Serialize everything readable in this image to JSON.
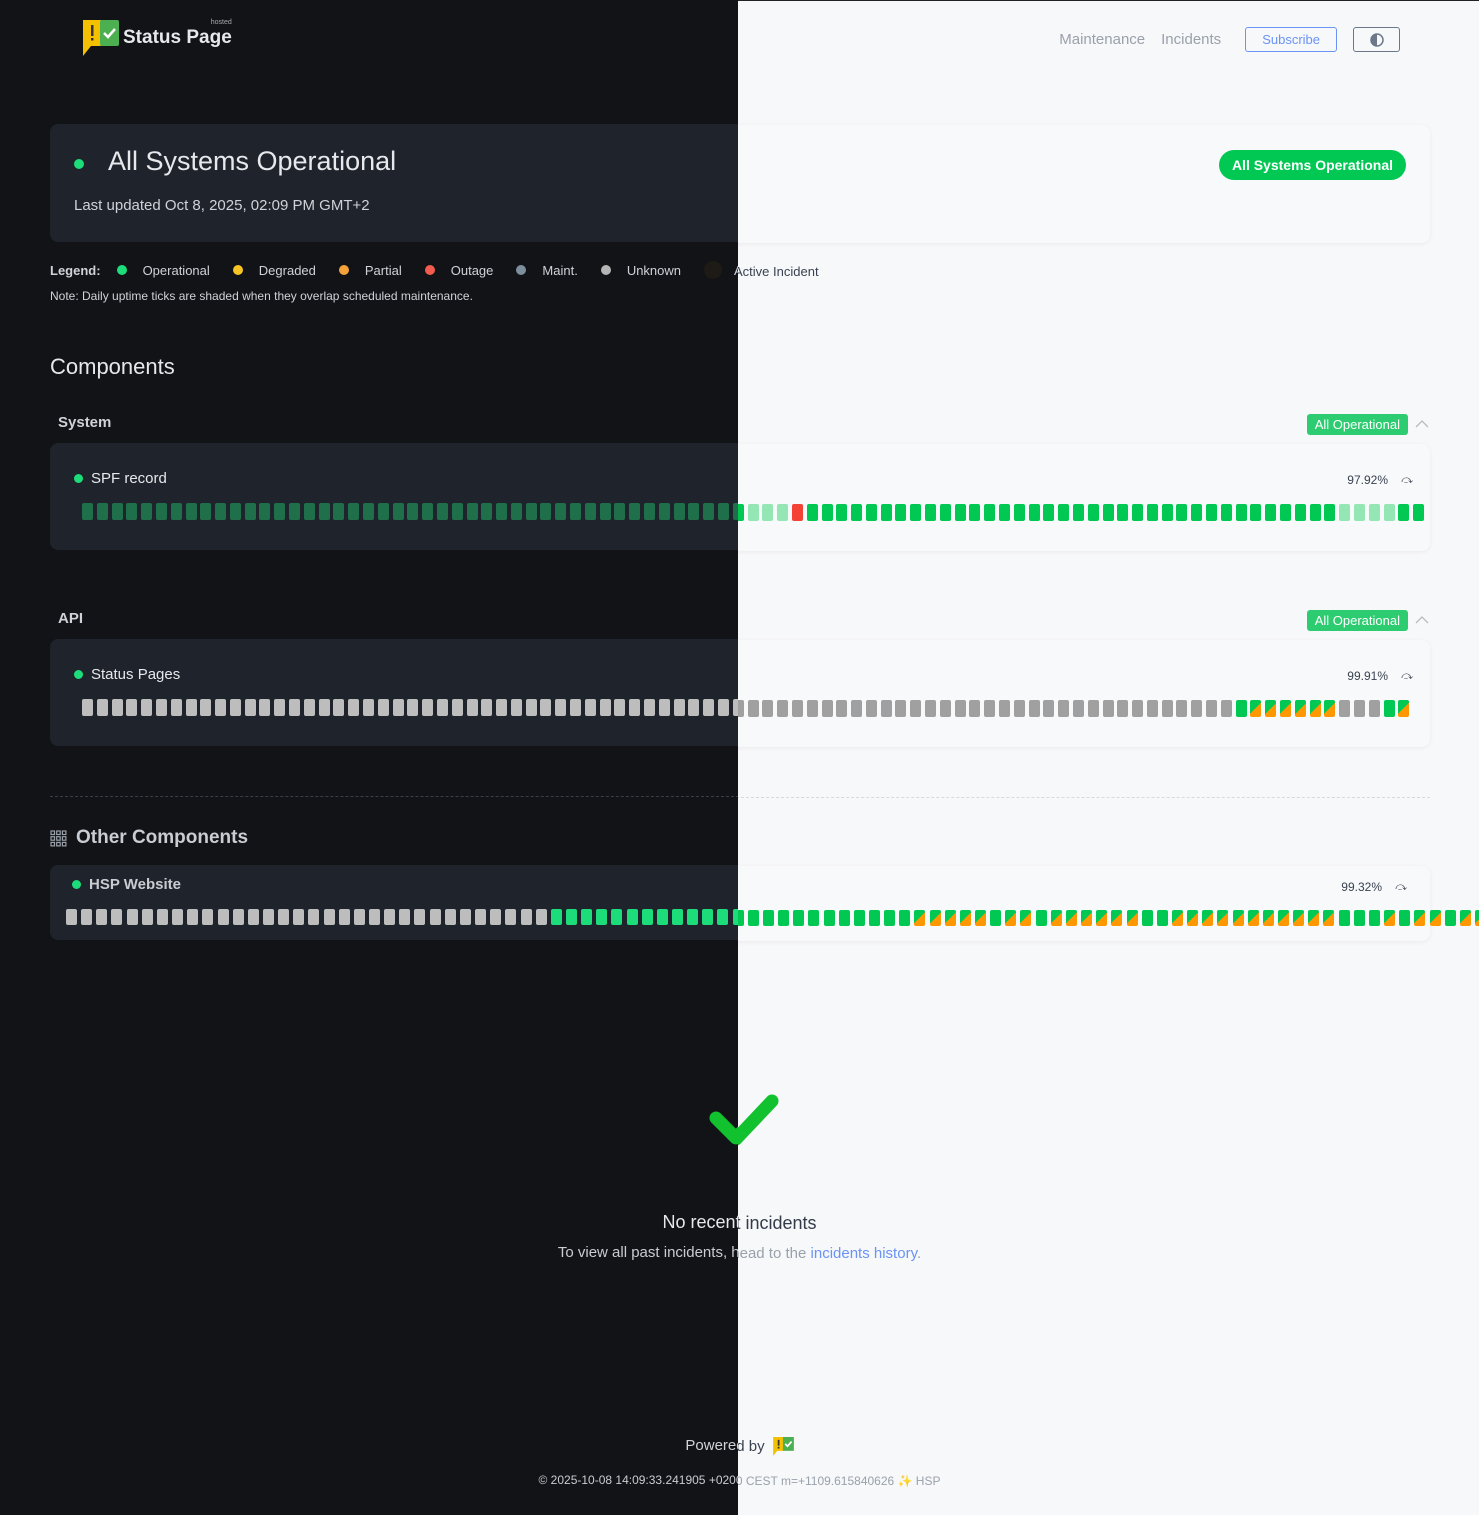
{
  "header": {
    "logo_text": "Status Page",
    "logo_superscript": "hosted",
    "nav": [
      "Maintenance",
      "Incidents"
    ],
    "subscribe_label": "Subscribe",
    "theme_toggle_icon": "half-circle-contrast-icon"
  },
  "hero": {
    "title": "All Systems Operational",
    "last_updated": "Last updated Oct 8, 2025, 02:09 PM GMT+2",
    "status_pill": "All Systems Operational"
  },
  "legend": {
    "label": "Legend:",
    "items": [
      {
        "label": "Operational",
        "color": "#1ddd7a"
      },
      {
        "label": "Degraded",
        "color": "#f7c325"
      },
      {
        "label": "Partial",
        "color": "#f6a23a"
      },
      {
        "label": "Outage",
        "color": "#f25b4f"
      },
      {
        "label": "Maint.",
        "color": "#7d8f9c"
      },
      {
        "label": "Unknown",
        "color": "#b5b5b5"
      },
      {
        "label": "Active Incident",
        "color": "#1e1a16"
      }
    ],
    "note": "Note: Daily uptime ticks are shaded when they overlap scheduled maintenance."
  },
  "components": {
    "title": "Components",
    "groups": [
      {
        "name": "System",
        "badge": "All Operational",
        "items": [
          {
            "name": "SPF record",
            "uptime": "97.92%",
            "ticks": "ssssssssssssssssssssssssssssssssssssssssssssslllroooooooooooooooooooooooooooooooooooolllloo"
          }
        ]
      },
      {
        "name": "API",
        "badge": "All Operational",
        "items": [
          {
            "name": "Status Pages",
            "uptime": "99.91%",
            "ticks": "ggggggggggggggggggggggggggggggggggggggggggggggggggggggggggggggggggggggggggggggoppppppgggop"
          }
        ]
      }
    ],
    "other_title": "Other Components",
    "other_items": [
      {
        "name": "HSP Website",
        "uptime": "99.32%",
        "ticks": "ggggggggggggggggggggggggggggggggoooooooooooooooooooooooopppppoppoppppppoopppppppppppooopoppopppgggpp"
      }
    ]
  },
  "tick_legend": {
    "o": "operational",
    "s": "operational (maintenance shaded)",
    "l": "operational (light)",
    "r": "outage",
    "p": "partial",
    "g": "unknown"
  },
  "incidents": {
    "empty_title": "No recent incidents",
    "empty_text": "To view all past incidents, head to the",
    "history_link": "incidents history",
    "period": "."
  },
  "footer": {
    "powered_by": "Powered by",
    "copyright": "© 2025-10-08 14:09:33.241905 +0200 CEST m=+1109.615840626 ✨ HSP"
  }
}
